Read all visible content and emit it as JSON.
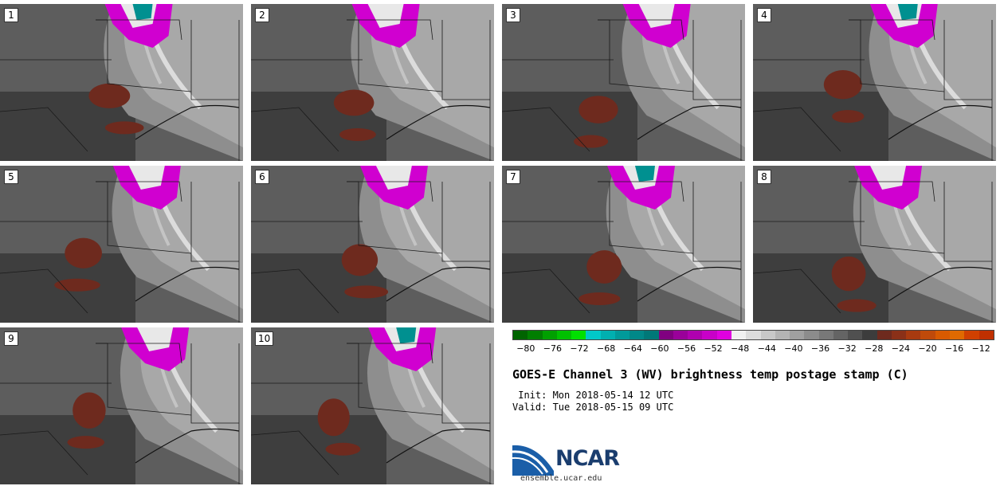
{
  "panels": [
    {
      "label": "1"
    },
    {
      "label": "2"
    },
    {
      "label": "3"
    },
    {
      "label": "4"
    },
    {
      "label": "5"
    },
    {
      "label": "6"
    },
    {
      "label": "7"
    },
    {
      "label": "8"
    },
    {
      "label": "9"
    },
    {
      "label": "10"
    }
  ],
  "colorbar": {
    "colors": [
      "#006400",
      "#007f00",
      "#00a000",
      "#00c000",
      "#00e000",
      "#00c8c8",
      "#00b0b0",
      "#009a9a",
      "#008888",
      "#007878",
      "#800080",
      "#9a009a",
      "#b000b0",
      "#c800c8",
      "#e000e0",
      "#f0f0f0",
      "#dcdcdc",
      "#c8c8c8",
      "#b4b4b4",
      "#a0a0a0",
      "#8c8c8c",
      "#787878",
      "#646464",
      "#505050",
      "#3c3c3c",
      "#6e2a1e",
      "#8a3018",
      "#a83a10",
      "#c04a0a",
      "#d85a00",
      "#e06a00",
      "#d04000",
      "#c03000"
    ],
    "tick_labels": [
      "−80",
      "−76",
      "−72",
      "−68",
      "−64",
      "−60",
      "−56",
      "−52",
      "−48",
      "−44",
      "−40",
      "−36",
      "−32",
      "−28",
      "−24",
      "−20",
      "−16",
      "−12"
    ],
    "range": [
      -82,
      -10
    ]
  },
  "title": "GOES-E Channel 3 (WV) brightness temp postage stamp (C)",
  "init_line": " Init: Mon 2018-05-14 12 UTC",
  "valid_line": "Valid: Tue 2018-05-15 09 UTC",
  "logo": {
    "text": "NCAR",
    "url": "ensemble.ucar.edu"
  }
}
